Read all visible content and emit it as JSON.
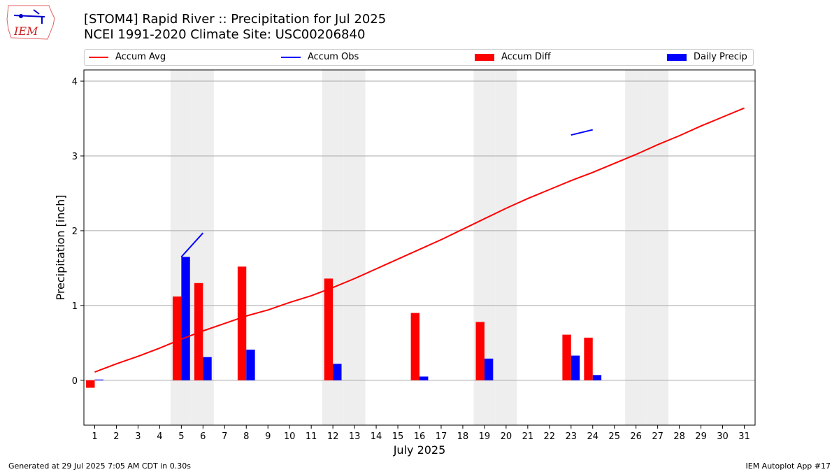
{
  "header": {
    "logo_text": "IEM",
    "title_line1": "[STOM4] Rapid River :: Precipitation for Jul 2025",
    "title_line2": "NCEI 1991-2020 Climate Site: USC00206840"
  },
  "legend": {
    "accum_avg": "Accum Avg",
    "accum_obs": "Accum Obs",
    "accum_diff": "Accum Diff",
    "daily_precip": "Daily Precip"
  },
  "footer": {
    "generated": "Generated at 29 Jul 2025 7:05 AM CDT in 0.30s",
    "app": "IEM Autoplot App #17"
  },
  "colors": {
    "accum_avg": "#ff0000",
    "accum_obs": "#0000ff",
    "accum_diff": "#ff0000",
    "daily_precip": "#0000ff",
    "weekend_shade": "#eeeeee",
    "grid": "#aaaaaa"
  },
  "chart_data": {
    "type": "bar",
    "xlabel": "July 2025",
    "ylabel": "Precipitation [inch]",
    "xlim": [
      0.5,
      31.5
    ],
    "ylim": [
      -0.6,
      4.15
    ],
    "yticks": [
      0,
      1,
      2,
      3,
      4
    ],
    "grid": "horizontal",
    "legend_position": "top",
    "days": [
      1,
      2,
      3,
      4,
      5,
      6,
      7,
      8,
      9,
      10,
      11,
      12,
      13,
      14,
      15,
      16,
      17,
      18,
      19,
      20,
      21,
      22,
      23,
      24,
      25,
      26,
      27,
      28,
      29,
      30,
      31
    ],
    "weekend_days": [
      5,
      6,
      12,
      13,
      19,
      20,
      26,
      27
    ],
    "series": [
      {
        "name": "Accum Avg",
        "kind": "line",
        "values": [
          0.11,
          0.22,
          0.32,
          0.43,
          0.55,
          0.66,
          0.76,
          0.86,
          0.94,
          1.04,
          1.13,
          1.24,
          1.36,
          1.49,
          1.62,
          1.75,
          1.88,
          2.02,
          2.16,
          2.3,
          2.43,
          2.55,
          2.67,
          2.78,
          2.9,
          3.02,
          3.15,
          3.27,
          3.4,
          3.52,
          3.64
        ]
      },
      {
        "name": "Accum Obs",
        "kind": "line",
        "values": [
          null,
          null,
          null,
          null,
          1.65,
          1.97,
          null,
          null,
          null,
          null,
          null,
          null,
          null,
          null,
          null,
          null,
          null,
          null,
          null,
          null,
          null,
          null,
          3.28,
          3.35,
          null,
          null,
          null,
          null,
          null,
          null,
          null
        ]
      },
      {
        "name": "Accum Diff",
        "kind": "bar",
        "values": [
          -0.1,
          0,
          0,
          0,
          1.12,
          1.3,
          0,
          1.52,
          0,
          0,
          0,
          1.36,
          0,
          0,
          0,
          0.9,
          0,
          0,
          0.78,
          0,
          0,
          0,
          0.61,
          0.57,
          0,
          0,
          0,
          0,
          0,
          0,
          0
        ]
      },
      {
        "name": "Daily Precip",
        "kind": "bar",
        "values": [
          0.01,
          0,
          0,
          0,
          1.65,
          0.31,
          0,
          0.41,
          0,
          0,
          0,
          0.22,
          0,
          0,
          0,
          0.05,
          0,
          0,
          0.29,
          0,
          0,
          0,
          0.33,
          0.07,
          0,
          0,
          0,
          0,
          0,
          0,
          0
        ]
      }
    ]
  }
}
